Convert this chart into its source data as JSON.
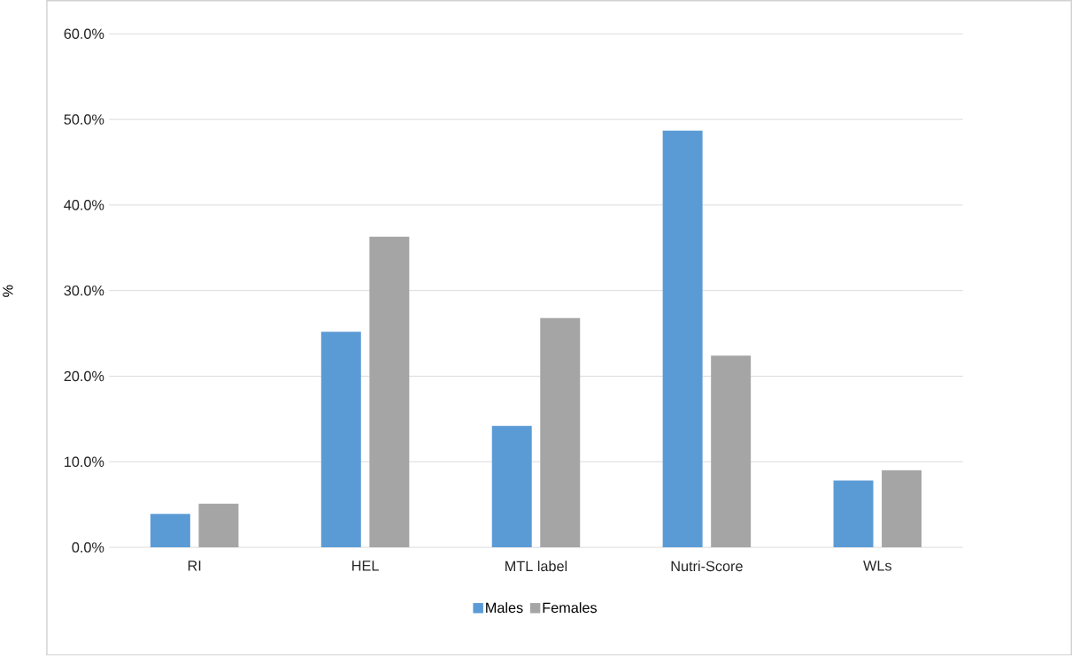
{
  "chart_data": {
    "type": "bar",
    "ylabel": "%",
    "categories": [
      "RI",
      "HEL",
      "MTL label",
      "Nutri-Score",
      "WLs"
    ],
    "series": [
      {
        "name": "Males",
        "color": "#5b9bd5",
        "values": [
          3.9,
          25.2,
          14.2,
          48.7,
          7.8
        ]
      },
      {
        "name": "Females",
        "color": "#a5a5a5",
        "values": [
          5.1,
          36.3,
          26.8,
          22.4,
          9.0
        ]
      }
    ],
    "ylim": [
      0,
      60
    ],
    "yticks": [
      {
        "value": 0,
        "label": "0.0%"
      },
      {
        "value": 10,
        "label": "10.0%"
      },
      {
        "value": 20,
        "label": "20.0%"
      },
      {
        "value": 30,
        "label": "30.0%"
      },
      {
        "value": 40,
        "label": "40.0%"
      },
      {
        "value": 50,
        "label": "50.0%"
      },
      {
        "value": 60,
        "label": "60.0%"
      }
    ],
    "grid": "y",
    "legend": "bottom"
  }
}
